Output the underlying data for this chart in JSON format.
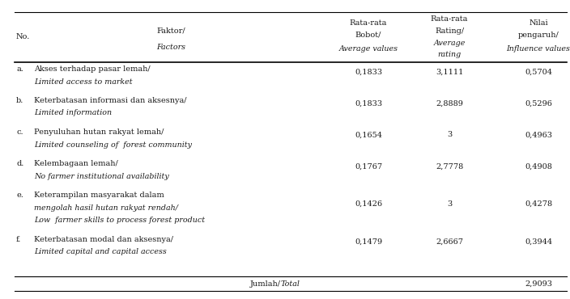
{
  "rows": [
    {
      "no": "a.",
      "factor_line1": "Akses terhadap pasar lemah/",
      "factor_line2": "Limited access to market",
      "bobot": "0,1833",
      "rating": "3,1111",
      "nilai": "0,5704",
      "has_line3": false
    },
    {
      "no": "b.",
      "factor_line1": "Keterbatasan informasi dan aksesnya/",
      "factor_line2": "Limited information",
      "bobot": "0,1833",
      "rating": "2,8889",
      "nilai": "0,5296",
      "has_line3": false
    },
    {
      "no": "c.",
      "factor_line1": "Penyuluhan hutan rakyat lemah/",
      "factor_line2": "Limited counseling of  forest community",
      "bobot": "0,1654",
      "rating": "3",
      "nilai": "0,4963",
      "has_line3": false
    },
    {
      "no": "d.",
      "factor_line1": "Kelembagaan lemah/",
      "factor_line2": "No farmer institutional availability",
      "bobot": "0,1767",
      "rating": "2,7778",
      "nilai": "0,4908",
      "has_line3": false
    },
    {
      "no": "e.",
      "factor_line1": "Keterampilan masyarakat dalam",
      "factor_line2": "mengolah hasil hutan rakyat rendah/",
      "factor_line3": "Low  farmer skills to process forest product",
      "bobot": "0,1426",
      "rating": "3",
      "nilai": "0,4278",
      "has_line3": true
    },
    {
      "no": "f.",
      "factor_line1": "Keterbatasan modal dan aksesnya/",
      "factor_line2": "Limited capital and capital access",
      "bobot": "0,1479",
      "rating": "2,6667",
      "nilai": "0,3944",
      "has_line3": false
    }
  ],
  "total_label_normal": "Jumlah/",
  "total_label_italic": "Total",
  "total_value": "2,9093",
  "bg_color": "#ffffff",
  "text_color": "#1a1a1a",
  "fs_main": 7.0,
  "fs_italic": 6.8
}
